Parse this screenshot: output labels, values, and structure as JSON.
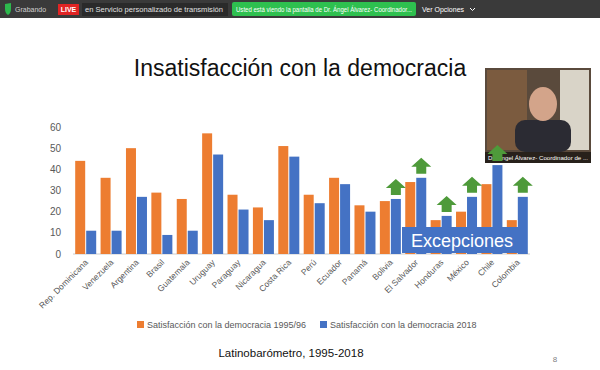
{
  "screen": {
    "recording": "Grabando",
    "live": "LIVE",
    "stream": "en Servicio personalizado de transmisión",
    "sharing": "Usted está viendo la pantalla de Dr. Ángel Álvarez- Coordinador...",
    "options": "Ver Opciones",
    "speaker": "Dr. Ángel Álvarez- Coordinador de ..."
  },
  "chart_data": {
    "type": "bar",
    "title": "Insatisfacción con la democracia",
    "categories": [
      "Rep. Dominicana",
      "Venezuela",
      "Argentina",
      "Brasil",
      "Guatemala",
      "Uruguay",
      "Paraguay",
      "Nicaragua",
      "Costa Rica",
      "Perú",
      "Ecuador",
      "Panamá",
      "Bolivia",
      "El Salvador",
      "Honduras",
      "México",
      "Chile",
      "Colombia"
    ],
    "series": [
      {
        "name": "Satisfacción con la democracia 1995/96",
        "color": "#ed7d31",
        "values": [
          44,
          36,
          50,
          29,
          26,
          57,
          28,
          22,
          51,
          28,
          36,
          23,
          25,
          34,
          16,
          20,
          33,
          16
        ]
      },
      {
        "name": "Satisfacción con la democracia 2018",
        "color": "#4472c4",
        "values": [
          11,
          11,
          27,
          9,
          11,
          47,
          21,
          16,
          46,
          24,
          33,
          20,
          26,
          36,
          18,
          27,
          42,
          27
        ]
      }
    ],
    "ylim": [
      0,
      60
    ],
    "yticks": [
      0,
      10,
      20,
      30,
      40,
      50,
      60
    ],
    "grid": false,
    "legend": "bottom",
    "annotations": [
      "Excepciones"
    ],
    "source": "Latinobarómetro, 1995-2018"
  },
  "slide": {
    "number": 8
  }
}
